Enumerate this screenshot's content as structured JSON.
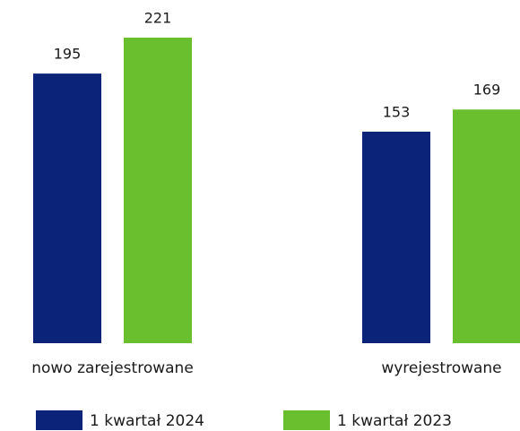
{
  "chart_data": {
    "type": "bar",
    "categories": [
      "nowo zarejestrowane",
      "wyrejestrowane"
    ],
    "series": [
      {
        "name": "1 kwartał 2024",
        "color": "#0b2479",
        "values": [
          195,
          153
        ]
      },
      {
        "name": "1 kwartał 2023",
        "color": "#6abf2e",
        "values": [
          221,
          169
        ]
      }
    ]
  }
}
